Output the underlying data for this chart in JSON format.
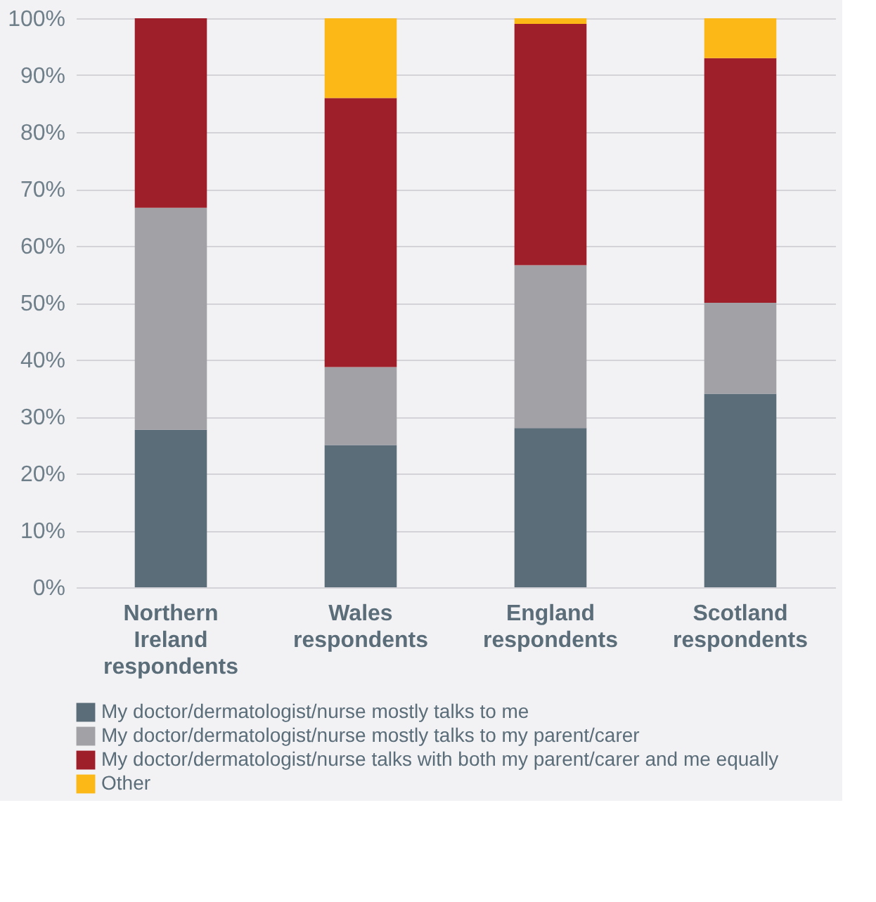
{
  "chart_data": {
    "type": "bar",
    "stacked": true,
    "categories": [
      "Northern Ireland respondents",
      "Wales respondents",
      "England respondents",
      "Scotland respondents"
    ],
    "series": [
      {
        "name": "My doctor/dermatologist/nurse mostly talks to me",
        "color": "#5a6d79",
        "values": [
          27.7,
          25,
          28,
          34
        ]
      },
      {
        "name": "My doctor/dermatologist/nurse mostly talks to my parent/carer",
        "color": "#a2a1a6",
        "values": [
          39,
          13.7,
          28.6,
          16
        ]
      },
      {
        "name": "My doctor/dermatologist/nurse talks with both my parent/carer and me equally",
        "color": "#9e1f29",
        "values": [
          33.3,
          47.3,
          42.4,
          43
        ]
      },
      {
        "name": "Other",
        "color": "#fbb817",
        "values": [
          0,
          14,
          1,
          7
        ]
      }
    ],
    "ylim": [
      0,
      100
    ],
    "yticks": [
      {
        "value": 0,
        "label": "0%"
      },
      {
        "value": 10,
        "label": "10%"
      },
      {
        "value": 20,
        "label": "20%"
      },
      {
        "value": 30,
        "label": "30%"
      },
      {
        "value": 40,
        "label": "40%"
      },
      {
        "value": 50,
        "label": "50%"
      },
      {
        "value": 60,
        "label": "60%"
      },
      {
        "value": 70,
        "label": "70%"
      },
      {
        "value": 80,
        "label": "80%"
      },
      {
        "value": 90,
        "label": "90%"
      },
      {
        "value": 100,
        "label": "100%"
      }
    ],
    "grid": "y",
    "legend": "bottom left"
  }
}
